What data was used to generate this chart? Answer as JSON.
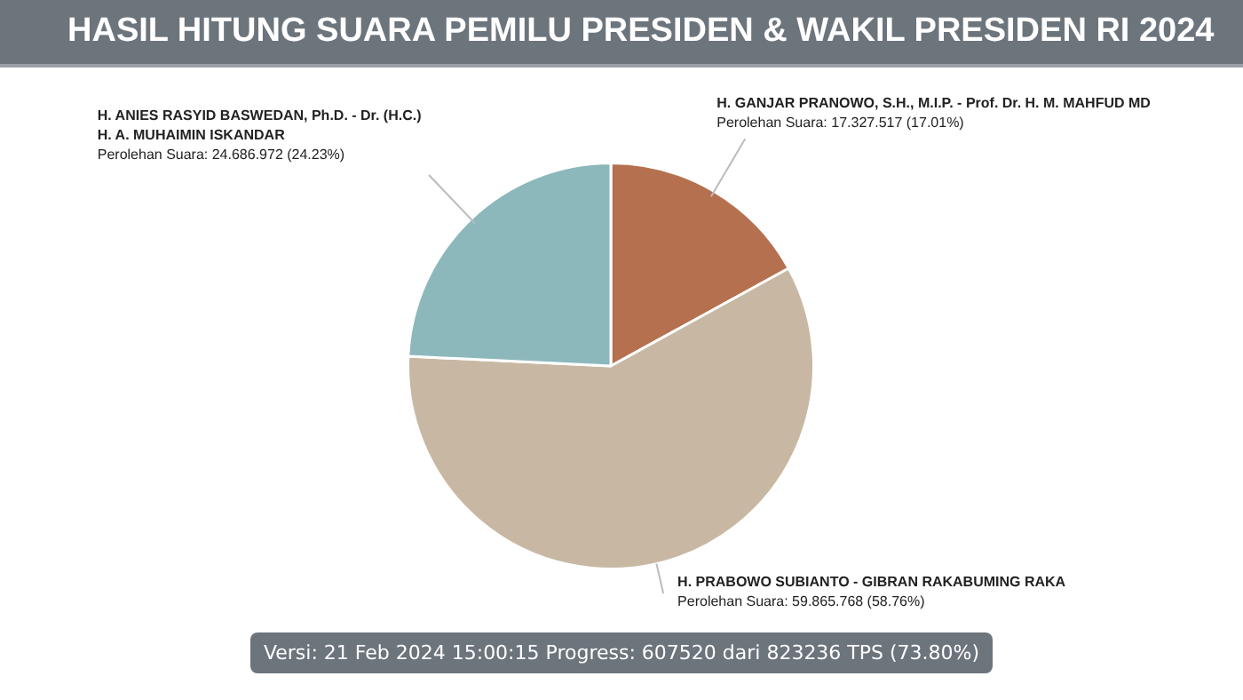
{
  "chart_data": {
    "type": "pie",
    "title": "HASIL HITUNG SUARA PEMILU PRESIDEN & WAKIL PRESIDEN RI 2024",
    "categories": [
      "H. GANJAR PRANOWO, S.H., M.I.P. - Prof. Dr. H. M. MAHFUD MD",
      "H. PRABOWO SUBIANTO - GIBRAN RAKABUMING RAKA",
      "H. ANIES RASYID BASWEDAN, Ph.D. - Dr. (H.C.) H. A. MUHAIMIN ISKANDAR"
    ],
    "values": [
      17327517,
      59865768,
      24686972
    ],
    "colors": [
      "#b5714f",
      "#c8b8a3",
      "#8cb8bc"
    ],
    "value_labels": [
      "Perolehan Suara: 17.327.517 (17.01%)",
      "Perolehan Suara: 59.865.768 (58.76%)",
      "Perolehan Suara: 24.686.972 (24.23%)"
    ],
    "annotations": [
      "Versi: 21 Feb 2024 15:00:15 Progress: 607520 dari 823236 TPS (73.80%)"
    ],
    "legend": false
  }
}
